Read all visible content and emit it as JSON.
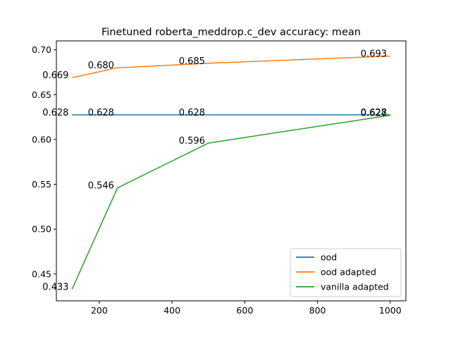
{
  "chart_data": {
    "type": "line",
    "title": "Finetuned roberta_meddrop.c_dev accuracy: mean",
    "xlabel": "",
    "ylabel": "",
    "xlim": [
      82,
      1043
    ],
    "ylim": [
      0.42,
      0.71
    ],
    "xticks": [
      200,
      400,
      600,
      800,
      1000
    ],
    "xtick_labels": [
      "200",
      "400",
      "600",
      "800",
      "1000"
    ],
    "yticks": [
      0.45,
      0.5,
      0.55,
      0.6,
      0.65,
      0.7
    ],
    "ytick_labels": [
      "0.45",
      "0.50",
      "0.55",
      "0.60",
      "0.65",
      "0.70"
    ],
    "grid": false,
    "legend_position": "lower-right",
    "series": [
      {
        "name": "ood",
        "color": "#1f77b4",
        "x": [
          125,
          250,
          500,
          1000
        ],
        "y": [
          0.6275,
          0.6275,
          0.6275,
          0.6275
        ],
        "labels": [
          "0.628",
          "0.628",
          "0.628",
          "0.628"
        ]
      },
      {
        "name": "ood adapted",
        "color": "#ff7f0e",
        "x": [
          125,
          250,
          500,
          1000
        ],
        "y": [
          0.669,
          0.68,
          0.685,
          0.693
        ],
        "labels": [
          "0.669",
          "0.680",
          "0.685",
          "0.693"
        ]
      },
      {
        "name": "vanilla adapted",
        "color": "#2ca02c",
        "x": [
          125,
          250,
          500,
          1000
        ],
        "y": [
          0.433,
          0.546,
          0.596,
          0.627
        ],
        "labels": [
          "0.433",
          "0.546",
          "0.596",
          "0.627"
        ]
      }
    ]
  }
}
